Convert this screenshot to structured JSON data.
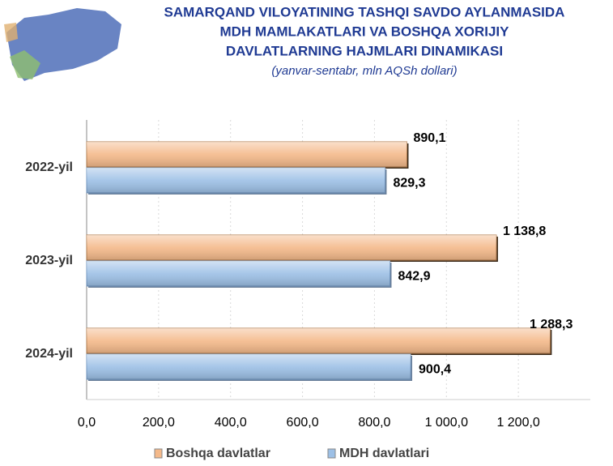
{
  "chart_data": {
    "type": "hbar",
    "title": [
      "SAMARQAND VILOYATINING TASHQI SAVDO AYLANMASIDA",
      "MDH MAMLAKATLARI VA BOSHQA XORIJIY",
      "DAVLATLARNING HAJMLARI DINAMIKASI"
    ],
    "subtitle": "(yanvar-sentabr, mln AQSh dollari)",
    "categories": [
      "2022-yil",
      "2023-yil",
      "2024-yil"
    ],
    "series": [
      {
        "name": "Boshqa davlatlar",
        "color": "#f4b98a",
        "values": [
          890.1,
          1138.8,
          1288.3
        ],
        "value_labels": [
          "890,1",
          "1 138,8",
          "1 288,3"
        ]
      },
      {
        "name": "MDH davlatlari",
        "color": "#9dc0e6",
        "values": [
          829.3,
          842.9,
          900.4
        ],
        "value_labels": [
          "829,3",
          "842,9",
          "900,4"
        ]
      }
    ],
    "xlim": [
      0,
      1400
    ],
    "xticks": [
      {
        "value": 0,
        "label": "0,0"
      },
      {
        "value": 200,
        "label": "200,0"
      },
      {
        "value": 400,
        "label": "400,0"
      },
      {
        "value": 600,
        "label": "600,0"
      },
      {
        "value": 800,
        "label": "800,0"
      },
      {
        "value": 1000,
        "label": "1 000,0"
      },
      {
        "value": 1200,
        "label": "1 200,0"
      }
    ],
    "grid": true,
    "legend": "bottom"
  }
}
